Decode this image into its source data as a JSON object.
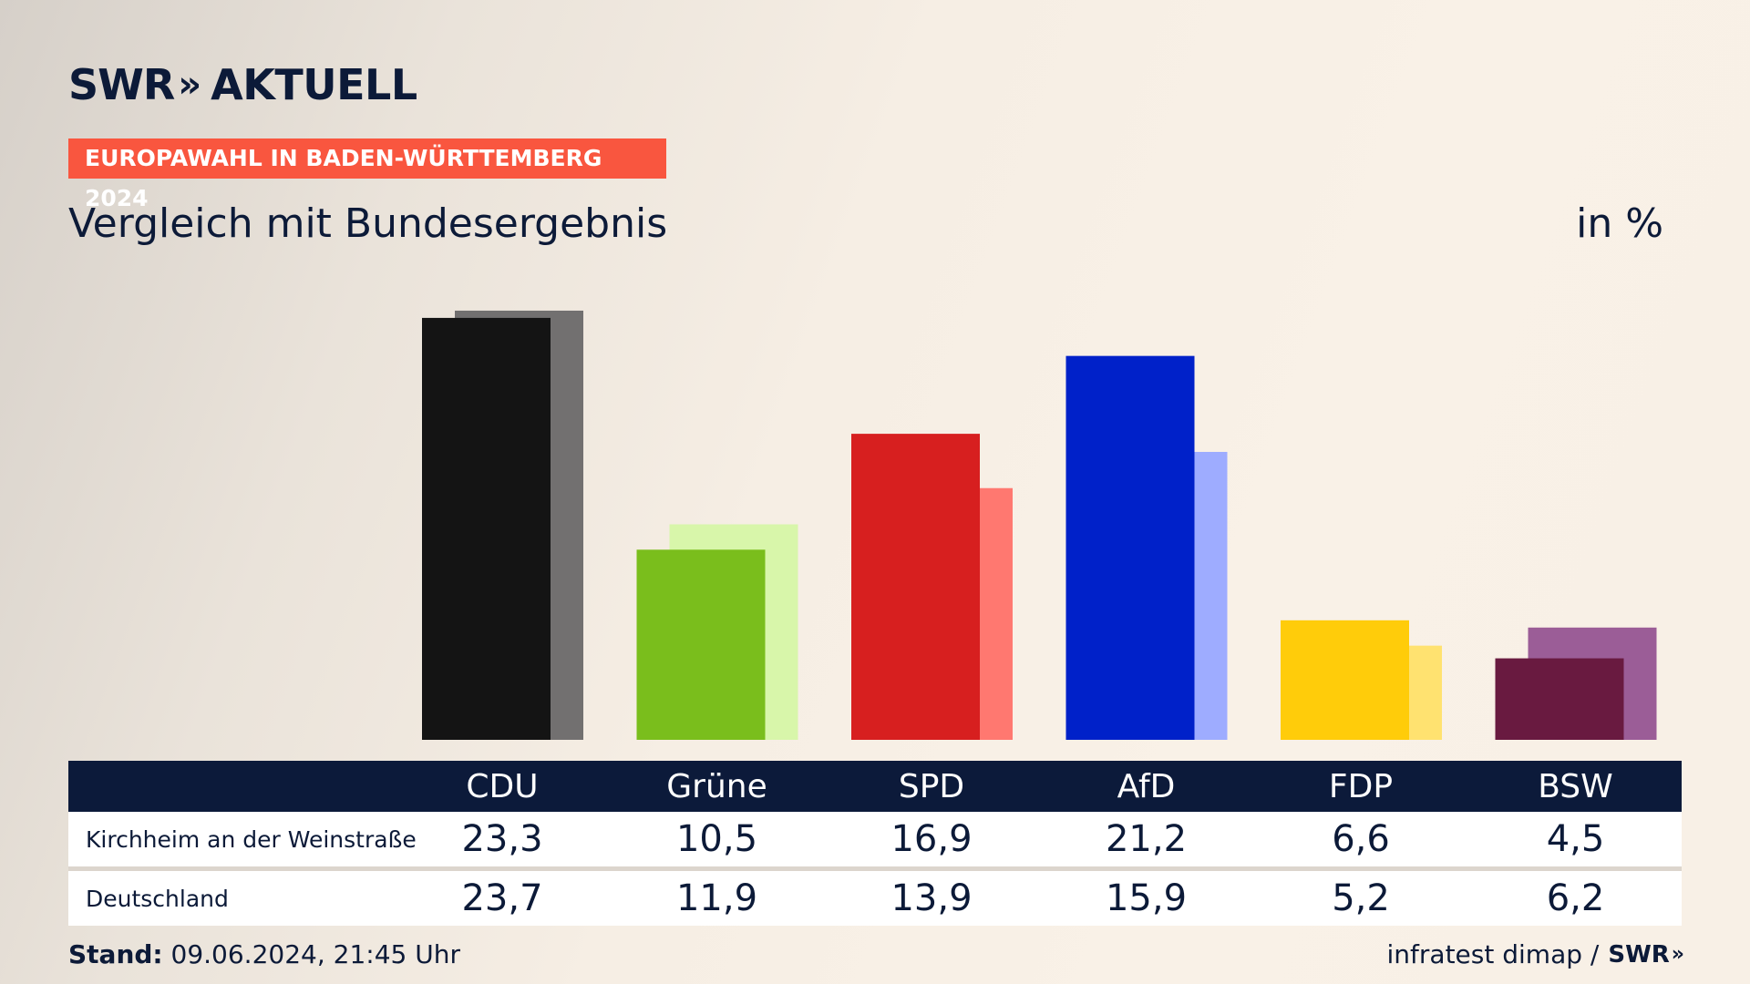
{
  "brand": {
    "swr": "SWR",
    "arrows": "»",
    "aktuell": "AKTUELL"
  },
  "tag": "EUROPAWAHL IN BADEN-WÜRTTEMBERG 2024",
  "headline": "Vergleich mit Bundesergebnis",
  "unit": "in %",
  "chart_data": {
    "type": "bar",
    "categories": [
      "CDU",
      "Grüne",
      "SPD",
      "AfD",
      "FDP",
      "BSW"
    ],
    "series": [
      {
        "name": "Kirchheim an der Weinstraße",
        "values": [
          23.3,
          10.5,
          16.9,
          21.2,
          6.6,
          4.5
        ],
        "colors": [
          "#141414",
          "#7abe1c",
          "#d71f1f",
          "#0021c9",
          "#ffcc0a",
          "#691a40"
        ]
      },
      {
        "name": "Deutschland",
        "values": [
          23.7,
          11.9,
          13.9,
          15.9,
          5.2,
          6.2
        ],
        "colors": [
          "#727070",
          "#d8f6aa",
          "#ff7870",
          "#9eacff",
          "#ffe270",
          "#9b5d97"
        ]
      }
    ],
    "value_labels": {
      "region": [
        "23,3",
        "10,5",
        "16,9",
        "21,2",
        "6,6",
        "4,5"
      ],
      "national": [
        "23,7",
        "11,9",
        "13,9",
        "15,9",
        "5,2",
        "6,2"
      ]
    },
    "ylim": [
      0,
      24
    ]
  },
  "footer": {
    "stand_label": "Stand:",
    "stand_value": " 09.06.2024, 21:45 Uhr",
    "source": "infratest dimap /",
    "source_brand": "SWR",
    "source_arrows": "»"
  }
}
